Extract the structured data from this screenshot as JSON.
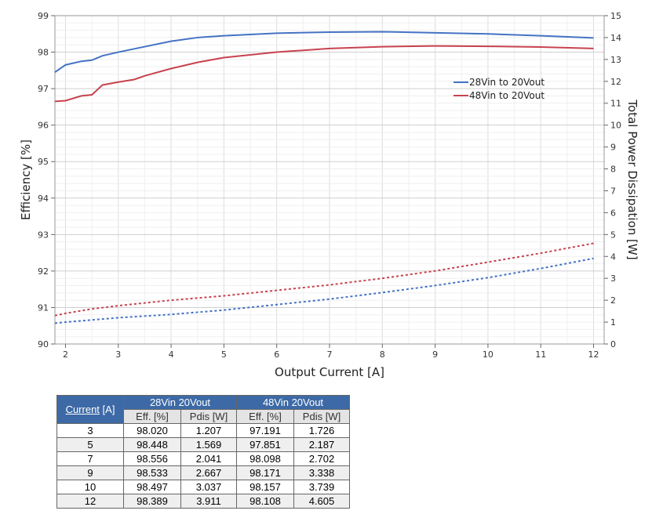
{
  "chart_data": {
    "type": "line",
    "xlabel": "Output Current [A]",
    "ylabel": "Efficiency [%]",
    "y2label": "Total Power Dissipation [W]",
    "xlim": [
      1.8,
      12.2
    ],
    "ylim": [
      90,
      99
    ],
    "y2lim": [
      0,
      15
    ],
    "xticks": [
      2,
      3,
      4,
      5,
      6,
      7,
      8,
      9,
      10,
      11,
      12
    ],
    "yticks": [
      90,
      91,
      92,
      93,
      94,
      95,
      96,
      97,
      98,
      99
    ],
    "y2ticks": [
      0,
      1,
      2,
      3,
      4,
      5,
      6,
      7,
      8,
      9,
      10,
      11,
      12,
      13,
      14,
      15
    ],
    "grid": true,
    "legend": "top-right",
    "series": [
      {
        "name": "28Vin to 20Vout",
        "axis": "left",
        "style": "solid",
        "color": "#4472c4",
        "x": [
          1.8,
          2,
          2.3,
          2.5,
          2.7,
          3,
          3.5,
          4,
          4.5,
          5,
          6,
          7,
          8,
          9,
          10,
          11,
          12
        ],
        "y": [
          97.45,
          97.65,
          97.75,
          97.78,
          97.9,
          98.0,
          98.15,
          98.3,
          98.4,
          98.45,
          98.52,
          98.55,
          98.56,
          98.53,
          98.5,
          98.45,
          98.39
        ]
      },
      {
        "name": "48Vin to 20Vout",
        "axis": "left",
        "style": "solid",
        "color": "#c8424f",
        "x": [
          1.8,
          2,
          2.3,
          2.5,
          2.7,
          3,
          3.3,
          3.5,
          4,
          4.5,
          5,
          6,
          7,
          8,
          9,
          10,
          11,
          12
        ],
        "y": [
          96.65,
          96.67,
          96.8,
          96.83,
          97.1,
          97.18,
          97.25,
          97.35,
          97.55,
          97.72,
          97.85,
          98.0,
          98.1,
          98.15,
          98.17,
          98.16,
          98.14,
          98.1
        ]
      },
      {
        "axis": "right",
        "style": "dotted",
        "color": "#4472c4",
        "x": [
          1.8,
          2,
          2.5,
          3,
          4,
          5,
          6,
          7,
          8,
          9,
          10,
          11,
          12
        ],
        "y": [
          0.95,
          1.0,
          1.1,
          1.2,
          1.35,
          1.55,
          1.8,
          2.05,
          2.35,
          2.67,
          3.03,
          3.45,
          3.91
        ]
      },
      {
        "axis": "right",
        "style": "dotted",
        "color": "#c8424f",
        "x": [
          1.8,
          2,
          2.5,
          3,
          4,
          5,
          6,
          7,
          8,
          9,
          10,
          11,
          12
        ],
        "y": [
          1.3,
          1.4,
          1.6,
          1.75,
          2.0,
          2.2,
          2.45,
          2.7,
          3.0,
          3.34,
          3.74,
          4.15,
          4.6
        ]
      }
    ]
  },
  "table": {
    "corner": "Current",
    "corner_unit": " [A]",
    "groups": [
      "28Vin 20Vout",
      "48Vin 20Vout"
    ],
    "sub": [
      "Eff. [%]",
      "Pdis [W]",
      "Eff. [%]",
      "Pdis [W]"
    ],
    "rows": [
      [
        "3",
        "98.020",
        "1.207",
        "97.191",
        "1.726"
      ],
      [
        "5",
        "98.448",
        "1.569",
        "97.851",
        "2.187"
      ],
      [
        "7",
        "98.556",
        "2.041",
        "98.098",
        "2.702"
      ],
      [
        "9",
        "98.533",
        "2.667",
        "98.171",
        "3.338"
      ],
      [
        "10",
        "98.497",
        "3.037",
        "98.157",
        "3.739"
      ],
      [
        "12",
        "98.389",
        "3.911",
        "98.108",
        "4.605"
      ]
    ]
  }
}
